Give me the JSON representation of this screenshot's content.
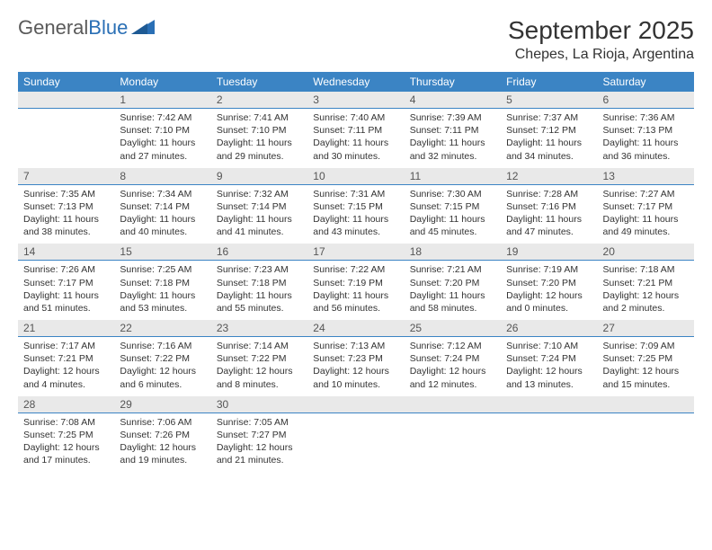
{
  "logo": {
    "word1": "General",
    "word2": "Blue"
  },
  "title": "September 2025",
  "location": "Chepes, La Rioja, Argentina",
  "dow": [
    "Sunday",
    "Monday",
    "Tuesday",
    "Wednesday",
    "Thursday",
    "Friday",
    "Saturday"
  ],
  "colors": {
    "header_bg": "#3b84c4",
    "daynum_bg": "#e9e9e9",
    "border": "#3b84c4",
    "text": "#333333",
    "logo_gray": "#5a5a5a",
    "logo_blue": "#2a6fb5"
  },
  "weeks": [
    {
      "nums": [
        "",
        "1",
        "2",
        "3",
        "4",
        "5",
        "6"
      ],
      "cells": [
        {
          "sunrise": "",
          "sunset": "",
          "daylight": ""
        },
        {
          "sunrise": "Sunrise: 7:42 AM",
          "sunset": "Sunset: 7:10 PM",
          "daylight": "Daylight: 11 hours and 27 minutes."
        },
        {
          "sunrise": "Sunrise: 7:41 AM",
          "sunset": "Sunset: 7:10 PM",
          "daylight": "Daylight: 11 hours and 29 minutes."
        },
        {
          "sunrise": "Sunrise: 7:40 AM",
          "sunset": "Sunset: 7:11 PM",
          "daylight": "Daylight: 11 hours and 30 minutes."
        },
        {
          "sunrise": "Sunrise: 7:39 AM",
          "sunset": "Sunset: 7:11 PM",
          "daylight": "Daylight: 11 hours and 32 minutes."
        },
        {
          "sunrise": "Sunrise: 7:37 AM",
          "sunset": "Sunset: 7:12 PM",
          "daylight": "Daylight: 11 hours and 34 minutes."
        },
        {
          "sunrise": "Sunrise: 7:36 AM",
          "sunset": "Sunset: 7:13 PM",
          "daylight": "Daylight: 11 hours and 36 minutes."
        }
      ]
    },
    {
      "nums": [
        "7",
        "8",
        "9",
        "10",
        "11",
        "12",
        "13"
      ],
      "cells": [
        {
          "sunrise": "Sunrise: 7:35 AM",
          "sunset": "Sunset: 7:13 PM",
          "daylight": "Daylight: 11 hours and 38 minutes."
        },
        {
          "sunrise": "Sunrise: 7:34 AM",
          "sunset": "Sunset: 7:14 PM",
          "daylight": "Daylight: 11 hours and 40 minutes."
        },
        {
          "sunrise": "Sunrise: 7:32 AM",
          "sunset": "Sunset: 7:14 PM",
          "daylight": "Daylight: 11 hours and 41 minutes."
        },
        {
          "sunrise": "Sunrise: 7:31 AM",
          "sunset": "Sunset: 7:15 PM",
          "daylight": "Daylight: 11 hours and 43 minutes."
        },
        {
          "sunrise": "Sunrise: 7:30 AM",
          "sunset": "Sunset: 7:15 PM",
          "daylight": "Daylight: 11 hours and 45 minutes."
        },
        {
          "sunrise": "Sunrise: 7:28 AM",
          "sunset": "Sunset: 7:16 PM",
          "daylight": "Daylight: 11 hours and 47 minutes."
        },
        {
          "sunrise": "Sunrise: 7:27 AM",
          "sunset": "Sunset: 7:17 PM",
          "daylight": "Daylight: 11 hours and 49 minutes."
        }
      ]
    },
    {
      "nums": [
        "14",
        "15",
        "16",
        "17",
        "18",
        "19",
        "20"
      ],
      "cells": [
        {
          "sunrise": "Sunrise: 7:26 AM",
          "sunset": "Sunset: 7:17 PM",
          "daylight": "Daylight: 11 hours and 51 minutes."
        },
        {
          "sunrise": "Sunrise: 7:25 AM",
          "sunset": "Sunset: 7:18 PM",
          "daylight": "Daylight: 11 hours and 53 minutes."
        },
        {
          "sunrise": "Sunrise: 7:23 AM",
          "sunset": "Sunset: 7:18 PM",
          "daylight": "Daylight: 11 hours and 55 minutes."
        },
        {
          "sunrise": "Sunrise: 7:22 AM",
          "sunset": "Sunset: 7:19 PM",
          "daylight": "Daylight: 11 hours and 56 minutes."
        },
        {
          "sunrise": "Sunrise: 7:21 AM",
          "sunset": "Sunset: 7:20 PM",
          "daylight": "Daylight: 11 hours and 58 minutes."
        },
        {
          "sunrise": "Sunrise: 7:19 AM",
          "sunset": "Sunset: 7:20 PM",
          "daylight": "Daylight: 12 hours and 0 minutes."
        },
        {
          "sunrise": "Sunrise: 7:18 AM",
          "sunset": "Sunset: 7:21 PM",
          "daylight": "Daylight: 12 hours and 2 minutes."
        }
      ]
    },
    {
      "nums": [
        "21",
        "22",
        "23",
        "24",
        "25",
        "26",
        "27"
      ],
      "cells": [
        {
          "sunrise": "Sunrise: 7:17 AM",
          "sunset": "Sunset: 7:21 PM",
          "daylight": "Daylight: 12 hours and 4 minutes."
        },
        {
          "sunrise": "Sunrise: 7:16 AM",
          "sunset": "Sunset: 7:22 PM",
          "daylight": "Daylight: 12 hours and 6 minutes."
        },
        {
          "sunrise": "Sunrise: 7:14 AM",
          "sunset": "Sunset: 7:22 PM",
          "daylight": "Daylight: 12 hours and 8 minutes."
        },
        {
          "sunrise": "Sunrise: 7:13 AM",
          "sunset": "Sunset: 7:23 PM",
          "daylight": "Daylight: 12 hours and 10 minutes."
        },
        {
          "sunrise": "Sunrise: 7:12 AM",
          "sunset": "Sunset: 7:24 PM",
          "daylight": "Daylight: 12 hours and 12 minutes."
        },
        {
          "sunrise": "Sunrise: 7:10 AM",
          "sunset": "Sunset: 7:24 PM",
          "daylight": "Daylight: 12 hours and 13 minutes."
        },
        {
          "sunrise": "Sunrise: 7:09 AM",
          "sunset": "Sunset: 7:25 PM",
          "daylight": "Daylight: 12 hours and 15 minutes."
        }
      ]
    },
    {
      "nums": [
        "28",
        "29",
        "30",
        "",
        "",
        "",
        ""
      ],
      "cells": [
        {
          "sunrise": "Sunrise: 7:08 AM",
          "sunset": "Sunset: 7:25 PM",
          "daylight": "Daylight: 12 hours and 17 minutes."
        },
        {
          "sunrise": "Sunrise: 7:06 AM",
          "sunset": "Sunset: 7:26 PM",
          "daylight": "Daylight: 12 hours and 19 minutes."
        },
        {
          "sunrise": "Sunrise: 7:05 AM",
          "sunset": "Sunset: 7:27 PM",
          "daylight": "Daylight: 12 hours and 21 minutes."
        },
        {
          "sunrise": "",
          "sunset": "",
          "daylight": ""
        },
        {
          "sunrise": "",
          "sunset": "",
          "daylight": ""
        },
        {
          "sunrise": "",
          "sunset": "",
          "daylight": ""
        },
        {
          "sunrise": "",
          "sunset": "",
          "daylight": ""
        }
      ]
    }
  ]
}
